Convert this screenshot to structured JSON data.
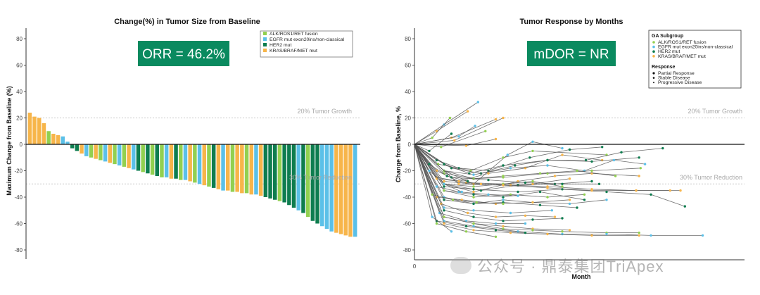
{
  "colors": {
    "alk": "#92d050",
    "egfr": "#5bc0e8",
    "her2": "#0e7d4f",
    "kras": "#f7b54a",
    "box": "#0a8a5f",
    "axis": "#333333",
    "ref": "#c8c8c8",
    "line": "#555555"
  },
  "left": {
    "title": "Change(%) in Tumor Size from Baseline",
    "box_label": "ORR = 46.2%",
    "ylabel": "Maximum Change from Baseline (%)",
    "ylim": [
      -85,
      88
    ],
    "yticks": [
      80,
      60,
      40,
      20,
      0,
      -20,
      -40,
      -60,
      -80
    ],
    "ref_growth_value": 20,
    "ref_growth_label": "20% Tumor Growth",
    "ref_reduction_value": -30,
    "ref_reduction_label": "30% Tumor Reduction",
    "legend": [
      {
        "key": "alk",
        "label": "ALK/ROS1/RET fusion"
      },
      {
        "key": "egfr",
        "label": "EGFR mut exon20ins/non-classical"
      },
      {
        "key": "her2",
        "label": "HER2 mut"
      },
      {
        "key": "kras",
        "label": "KRAS/BRAF/MET mut"
      }
    ]
  },
  "right": {
    "title": "Tumor Response by Months",
    "box_label": "mDOR = NR",
    "ylabel": "Change from Baseline, %",
    "xlabel": "Month",
    "x_tick_label": "0",
    "ylim": [
      -85,
      88
    ],
    "yticks": [
      80,
      60,
      40,
      20,
      0,
      -20,
      -40,
      -60,
      -80
    ],
    "ref_growth_value": 20,
    "ref_growth_label": "20% Tumor Growth",
    "ref_reduction_value": -30,
    "ref_reduction_label": "30% Tumor Reduction",
    "legend_group_title": "GA Subgroup",
    "legend_groups": [
      {
        "key": "alk",
        "label": "ALK/ROS1/RET fusion"
      },
      {
        "key": "egfr",
        "label": "EGFR mut exon20ins/non-classical"
      },
      {
        "key": "her2",
        "label": "HER2 mut"
      },
      {
        "key": "kras",
        "label": "KRAS/BRAF/MET mut"
      }
    ],
    "legend_response_title": "Response",
    "legend_responses": [
      "Partial Response",
      "Stable Disease",
      "Progressive Disease"
    ]
  },
  "watermark": "公众号 · 鼎泰集团TriApex",
  "chart_data": [
    {
      "type": "bar",
      "title": "Change(%) in Tumor Size from Baseline",
      "ylabel": "Maximum Change from Baseline (%)",
      "ylim": [
        -85,
        88
      ],
      "values": [
        24,
        21,
        20,
        16,
        10,
        8,
        7,
        6,
        2,
        -3,
        -5,
        -7,
        -9,
        -10,
        -11,
        -12,
        -13,
        -14,
        -15,
        -16,
        -17,
        -18,
        -19,
        -20,
        -21,
        -22,
        -23,
        -24,
        -25,
        -25,
        -26,
        -26,
        -27,
        -27,
        -28,
        -29,
        -30,
        -31,
        -32,
        -33,
        -34,
        -35,
        -35,
        -36,
        -36,
        -37,
        -37,
        -38,
        -38,
        -39,
        -40,
        -41,
        -42,
        -43,
        -44,
        -46,
        -48,
        -50,
        -52,
        -55,
        -58,
        -60,
        -62,
        -64,
        -66,
        -67,
        -68,
        -69,
        -70,
        -70
      ],
      "groups": [
        "kras",
        "kras",
        "kras",
        "kras",
        "alk",
        "kras",
        "kras",
        "egfr",
        "egfr",
        "her2",
        "her2",
        "kras",
        "egfr",
        "alk",
        "kras",
        "alk",
        "egfr",
        "kras",
        "alk",
        "egfr",
        "alk",
        "kras",
        "egfr",
        "her2",
        "alk",
        "her2",
        "alk",
        "her2",
        "alk",
        "egfr",
        "kras",
        "her2",
        "alk",
        "egfr",
        "kras",
        "alk",
        "egfr",
        "kras",
        "alk",
        "her2",
        "kras",
        "egfr",
        "kras",
        "alk",
        "kras",
        "kras",
        "alk",
        "kras",
        "egfr",
        "kras",
        "her2",
        "her2",
        "her2",
        "alk",
        "her2",
        "her2",
        "her2",
        "egfr",
        "her2",
        "alk",
        "her2",
        "her2",
        "egfr",
        "egfr",
        "egfr",
        "kras",
        "kras",
        "kras",
        "kras",
        "egfr"
      ]
    },
    {
      "type": "line",
      "title": "Tumor Response by Months",
      "xlabel": "Month",
      "ylabel": "Change from Baseline, %",
      "ylim": [
        -85,
        88
      ],
      "xlim": [
        0,
        20
      ],
      "series": [
        {
          "group": "kras",
          "x": [
            0,
            1.5,
            3.6
          ],
          "y": [
            0,
            10,
            25
          ]
        },
        {
          "group": "egfr",
          "x": [
            0,
            2,
            4.3
          ],
          "y": [
            0,
            15,
            32
          ]
        },
        {
          "group": "alk",
          "x": [
            0,
            1.2,
            2.4
          ],
          "y": [
            0,
            5,
            20
          ]
        },
        {
          "group": "kras",
          "x": [
            0,
            2.5,
            5.5
          ],
          "y": [
            0,
            5,
            19
          ]
        },
        {
          "group": "her2",
          "x": [
            0,
            1,
            2.5
          ],
          "y": [
            0,
            -5,
            8
          ]
        },
        {
          "group": "kras",
          "x": [
            0,
            2.7,
            6
          ],
          "y": [
            0,
            3,
            20
          ]
        },
        {
          "group": "egfr",
          "x": [
            0,
            3,
            4.1
          ],
          "y": [
            0,
            6,
            14
          ]
        },
        {
          "group": "alk",
          "x": [
            0,
            1.8,
            4.8
          ],
          "y": [
            0,
            -2,
            10
          ]
        },
        {
          "group": "kras",
          "x": [
            0,
            3.5,
            5.5
          ],
          "y": [
            0,
            -1,
            4
          ]
        },
        {
          "group": "her2",
          "x": [
            0,
            1.5,
            3,
            5,
            7.8,
            10.5,
            12.7
          ],
          "y": [
            0,
            -12,
            -18,
            -20,
            -10,
            -4,
            -2
          ]
        },
        {
          "group": "egfr",
          "x": [
            0,
            2,
            4,
            6.3,
            8,
            10
          ],
          "y": [
            0,
            -20,
            -30,
            -8,
            2,
            -3
          ]
        },
        {
          "group": "alk",
          "x": [
            0,
            1.6,
            3.8,
            6,
            8,
            13
          ],
          "y": [
            0,
            -15,
            -20,
            -10,
            -5,
            -8
          ]
        },
        {
          "group": "her2",
          "x": [
            0,
            2.5,
            4.5,
            6.8,
            9,
            11.6,
            14,
            16.8
          ],
          "y": [
            0,
            -18,
            -22,
            -16,
            -12,
            -12,
            -6,
            -3
          ]
        },
        {
          "group": "kras",
          "x": [
            0,
            1.5,
            3,
            5,
            7.5,
            10,
            12.7
          ],
          "y": [
            0,
            -20,
            -28,
            -22,
            -18,
            -8,
            -12
          ]
        },
        {
          "group": "her2",
          "x": [
            0,
            2,
            3.7,
            6,
            9,
            12,
            15.2
          ],
          "y": [
            0,
            -15,
            -22,
            -16,
            -12,
            -13,
            -10
          ]
        },
        {
          "group": "egfr",
          "x": [
            0,
            2,
            4,
            6.5,
            9,
            11.5,
            13.5,
            15.6
          ],
          "y": [
            0,
            -20,
            -23,
            -18,
            -16,
            -20,
            -12,
            -15
          ]
        },
        {
          "group": "kras",
          "x": [
            0,
            2,
            4,
            7,
            9.5,
            12,
            15.2
          ],
          "y": [
            0,
            -30,
            -36,
            -28,
            -24,
            -22,
            -24
          ]
        },
        {
          "group": "alk",
          "x": [
            0,
            2,
            4,
            6,
            9,
            12,
            15.3
          ],
          "y": [
            0,
            -20,
            -26,
            -25,
            -22,
            -20,
            -18
          ]
        },
        {
          "group": "her2",
          "x": [
            0,
            2,
            4.5,
            7,
            9.5,
            12
          ],
          "y": [
            0,
            -30,
            -35,
            -31,
            -30,
            -28
          ]
        },
        {
          "group": "alk",
          "x": [
            0,
            2,
            4,
            6,
            8.5,
            11,
            13.6
          ],
          "y": [
            0,
            -22,
            -26,
            -24,
            -22,
            -20,
            -24
          ]
        },
        {
          "group": "kras",
          "x": [
            0,
            1.5,
            3.5,
            6,
            8,
            10.5
          ],
          "y": [
            0,
            -25,
            -29,
            -30,
            -30,
            -26
          ]
        },
        {
          "group": "her2",
          "x": [
            0,
            2,
            4,
            6,
            8.5,
            11.5
          ],
          "y": [
            0,
            -35,
            -38,
            -40,
            -36,
            -42
          ]
        },
        {
          "group": "egfr",
          "x": [
            0,
            2,
            4,
            6,
            8,
            10.5,
            13
          ],
          "y": [
            0,
            -40,
            -45,
            -42,
            -44,
            -45,
            -42
          ]
        },
        {
          "group": "kras",
          "x": [
            0,
            2,
            4,
            6.5,
            9,
            12,
            15,
            18
          ],
          "y": [
            0,
            -28,
            -30,
            -31,
            -32,
            -34,
            -35,
            -35
          ]
        },
        {
          "group": "her2",
          "x": [
            0,
            2,
            4,
            7,
            10,
            13,
            16,
            18.3
          ],
          "y": [
            0,
            -32,
            -34,
            -36,
            -34,
            -36,
            -38,
            -47
          ]
        },
        {
          "group": "alk",
          "x": [
            0,
            2,
            4,
            6.5,
            9,
            11.5
          ],
          "y": [
            0,
            -35,
            -40,
            -38,
            -40,
            -38
          ]
        },
        {
          "group": "kras",
          "x": [
            0,
            1.5,
            3.2,
            5.5,
            8,
            10.5
          ],
          "y": [
            0,
            -40,
            -42,
            -45,
            -44,
            -42
          ]
        },
        {
          "group": "her2",
          "x": [
            0,
            2,
            4,
            6,
            8.5,
            11
          ],
          "y": [
            0,
            -42,
            -45,
            -44,
            -46,
            -48
          ]
        },
        {
          "group": "egfr",
          "x": [
            0,
            2,
            4,
            6.5,
            9.3
          ],
          "y": [
            0,
            -48,
            -50,
            -52,
            -50
          ]
        },
        {
          "group": "alk",
          "x": [
            0,
            2,
            4,
            6,
            8,
            10
          ],
          "y": [
            0,
            -30,
            -32,
            -30,
            -28,
            -32
          ]
        },
        {
          "group": "kras",
          "x": [
            0,
            1.8,
            3.6,
            5.5,
            7.5,
            9.5
          ],
          "y": [
            0,
            -45,
            -52,
            -55,
            -54,
            -55
          ]
        },
        {
          "group": "her2",
          "x": [
            0,
            2,
            4,
            6,
            8,
            10
          ],
          "y": [
            0,
            -50,
            -55,
            -58,
            -57,
            -56
          ]
        },
        {
          "group": "egfr",
          "x": [
            0,
            1.7,
            3.5,
            5.5,
            7.5
          ],
          "y": [
            0,
            -52,
            -58,
            -60,
            -60
          ]
        },
        {
          "group": "kras",
          "x": [
            0,
            2,
            4,
            6,
            8,
            10.5
          ],
          "y": [
            0,
            -55,
            -60,
            -62,
            -64,
            -65
          ]
        },
        {
          "group": "alk",
          "x": [
            0,
            2,
            4,
            6,
            8,
            10,
            13,
            15.2
          ],
          "y": [
            0,
            -55,
            -60,
            -64,
            -65,
            -66,
            -67,
            -67
          ]
        },
        {
          "group": "egfr",
          "x": [
            0,
            2,
            4,
            7,
            10,
            13,
            16,
            19.5
          ],
          "y": [
            0,
            -58,
            -62,
            -66,
            -68,
            -68,
            -69,
            -69
          ]
        },
        {
          "group": "kras",
          "x": [
            0,
            2,
            4,
            6.5,
            9,
            12,
            15.2
          ],
          "y": [
            0,
            -60,
            -65,
            -67,
            -68,
            -69,
            -69
          ]
        },
        {
          "group": "her2",
          "x": [
            0,
            1.5,
            3.5,
            5.5,
            7.5
          ],
          "y": [
            0,
            -58,
            -62,
            -65,
            -67
          ]
        },
        {
          "group": "alk",
          "x": [
            0,
            1.5,
            3.5,
            5.5
          ],
          "y": [
            0,
            -60,
            -66,
            -70
          ]
        },
        {
          "group": "egfr",
          "x": [
            0,
            1.2,
            2.5
          ],
          "y": [
            0,
            -55,
            -66
          ]
        },
        {
          "group": "kras",
          "x": [
            0,
            3,
            6,
            9,
            12,
            15,
            17.3
          ],
          "y": [
            0,
            -30,
            -31,
            -33,
            -35,
            -35,
            -35
          ]
        },
        {
          "group": "her2",
          "x": [
            0,
            2.5,
            5,
            7.5,
            10,
            12.5
          ],
          "y": [
            0,
            -25,
            -27,
            -29,
            -30,
            -30
          ]
        },
        {
          "group": "egfr",
          "x": [
            0,
            1.5,
            3,
            5,
            7
          ],
          "y": [
            0,
            -32,
            -36,
            -38,
            -39
          ]
        },
        {
          "group": "alk",
          "x": [
            0,
            1.2,
            2.6,
            4.2,
            6
          ],
          "y": [
            0,
            -38,
            -42,
            -44,
            -45
          ]
        },
        {
          "group": "kras",
          "x": [
            0,
            1.5,
            3,
            4.5
          ],
          "y": [
            0,
            -26,
            -28,
            -30
          ]
        },
        {
          "group": "her2",
          "x": [
            0,
            1,
            2.2,
            3.6
          ],
          "y": [
            0,
            -15,
            -24,
            -28
          ]
        },
        {
          "group": "egfr",
          "x": [
            0,
            1,
            2,
            3.2
          ],
          "y": [
            0,
            -20,
            -30,
            -36
          ]
        }
      ]
    }
  ]
}
